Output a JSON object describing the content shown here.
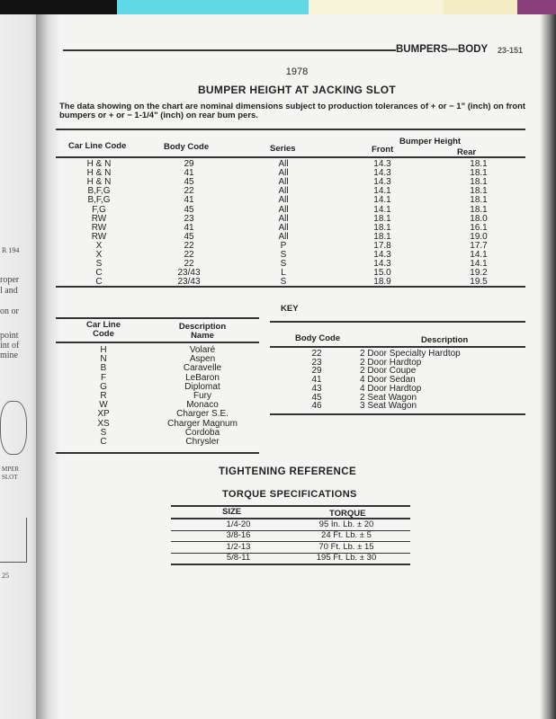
{
  "colors": {
    "strip": [
      "#111111",
      "#5fd9e6",
      "#f7f3d8",
      "#f2ebc4",
      "#8a3f7a"
    ]
  },
  "prev_page": {
    "fragments": [
      "R 194",
      "roper",
      "l and",
      "on or",
      "point",
      "int of",
      "mine",
      "MPER",
      "SLOT",
      "25"
    ]
  },
  "header": {
    "section": "BUMPERS—BODY",
    "page": "23-151"
  },
  "year": "1978",
  "title": "BUMPER HEIGHT AT JACKING SLOT",
  "intro": "The data showing on the chart are nominal dimensions subject to production tolerances of + or − 1\" (inch) on front bumpers or + or − 1-1/4\" (inch) on rear bum pers.",
  "bumper_table": {
    "headers": {
      "car_line": "Car Line Code",
      "body": "Body Code",
      "series": "Series",
      "group": "Bumper Height",
      "front": "Front",
      "rear": "Rear"
    },
    "rows": [
      [
        "H & N",
        "29",
        "All",
        "14.3",
        "18.1"
      ],
      [
        "H & N",
        "41",
        "All",
        "14.3",
        "18.1"
      ],
      [
        "H & N",
        "45",
        "All",
        "14.3",
        "18.1"
      ],
      [
        "B,F,G",
        "22",
        "All",
        "14.1",
        "18.1"
      ],
      [
        "B,F,G",
        "41",
        "All",
        "14.1",
        "18.1"
      ],
      [
        "F,G",
        "45",
        "All",
        "14.1",
        "18.1"
      ],
      [
        "RW",
        "23",
        "All",
        "18.1",
        "18.0"
      ],
      [
        "RW",
        "41",
        "All",
        "18.1",
        "16.1"
      ],
      [
        "RW",
        "45",
        "All",
        "18.1",
        "19.0"
      ],
      [
        "X",
        "22",
        "P",
        "17.8",
        "17.7"
      ],
      [
        "X",
        "22",
        "S",
        "14.3",
        "14.1"
      ],
      [
        "S",
        "22",
        "S",
        "14.3",
        "14.1"
      ],
      [
        "C",
        "23/43",
        "L",
        "15.0",
        "19.2"
      ],
      [
        "C",
        "23/43",
        "S",
        "18.9",
        "19.5"
      ]
    ]
  },
  "key_label": "KEY",
  "car_line_key": {
    "headers": [
      "Car Line",
      "Code",
      "Description",
      "Name"
    ],
    "rows": [
      [
        "H",
        "Volaré"
      ],
      [
        "N",
        "Aspen"
      ],
      [
        "B",
        "Caravelle"
      ],
      [
        "F",
        "LeBaron"
      ],
      [
        "G",
        "Diplomat"
      ],
      [
        "R",
        "Fury"
      ],
      [
        "W",
        "Monaco"
      ],
      [
        "XP",
        "Charger S.E."
      ],
      [
        "XS",
        "Charger Magnum"
      ],
      [
        "S",
        "Cordoba"
      ],
      [
        "C",
        "Chrysler"
      ]
    ]
  },
  "body_key": {
    "headers": [
      "Body Code",
      "Description"
    ],
    "rows": [
      [
        "22",
        "2 Door Specialty Hardtop"
      ],
      [
        "23",
        "2 Door Hardtop"
      ],
      [
        "29",
        "2 Door Coupe"
      ],
      [
        "41",
        "4 Door Sedan"
      ],
      [
        "43",
        "4 Door Hardtop"
      ],
      [
        "45",
        "2 Seat Wagon"
      ],
      [
        "46",
        "3 Seat Wagon"
      ]
    ]
  },
  "tightening": {
    "title": "TIGHTENING REFERENCE",
    "subtitle": "TORQUE SPECIFICATIONS",
    "headers": [
      "SIZE",
      "TORQUE"
    ],
    "rows": [
      [
        "1/4-20",
        "95 In. Lb. ± 20"
      ],
      [
        "3/8-16",
        "24 Ft. Lb. ± 5"
      ],
      [
        "1/2-13",
        "70 Ft. Lb. ± 15"
      ],
      [
        "5/8-11",
        "195 Ft. Lb. ± 30"
      ]
    ]
  }
}
